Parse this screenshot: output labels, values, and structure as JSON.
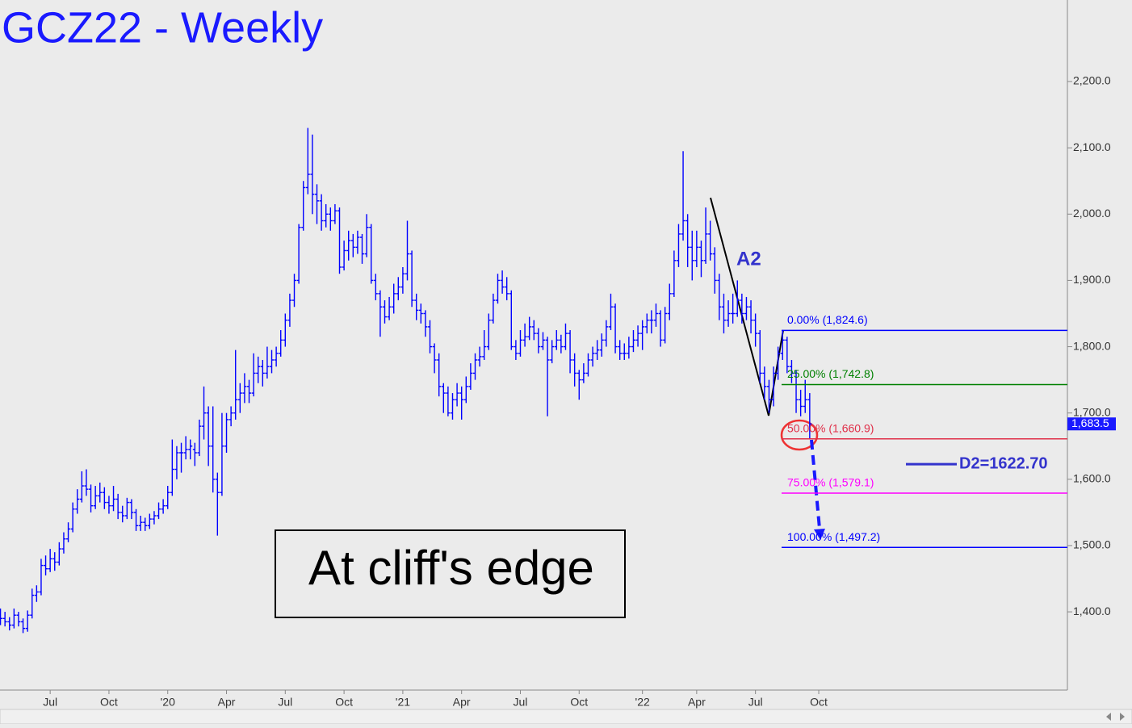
{
  "chart_data": {
    "type": "ohlc",
    "title": "GCZ22 - Weekly",
    "color": "#0000ff",
    "categories": [
      null,
      null,
      null,
      null,
      null,
      null,
      null,
      null,
      null,
      null,
      null,
      "Jul",
      null,
      null,
      null,
      null,
      null,
      null,
      null,
      null,
      null,
      null,
      null,
      null,
      "Oct",
      null,
      null,
      null,
      null,
      null,
      null,
      null,
      null,
      null,
      null,
      null,
      null,
      "'20",
      null,
      null,
      null,
      null,
      null,
      null,
      null,
      null,
      null,
      null,
      null,
      null,
      "Apr",
      null,
      null,
      null,
      null,
      null,
      null,
      null,
      null,
      null,
      null,
      null,
      null,
      "Jul",
      null,
      null,
      null,
      null,
      null,
      null,
      null,
      null,
      null,
      null,
      null,
      null,
      "Oct",
      null,
      null,
      null,
      null,
      null,
      null,
      null,
      null,
      null,
      null,
      null,
      null,
      "'21",
      null,
      null,
      null,
      null,
      null,
      null,
      null,
      null,
      null,
      null,
      null,
      null,
      "Apr",
      null,
      null,
      null,
      null,
      null,
      null,
      null,
      null,
      null,
      null,
      null,
      null,
      "Jul",
      null,
      null,
      null,
      null,
      null,
      null,
      null,
      null,
      null,
      null,
      null,
      null,
      "Oct",
      null,
      null,
      null,
      null,
      null,
      null,
      null,
      null,
      null,
      null,
      null,
      null,
      null,
      "'22",
      null,
      null,
      null,
      null,
      null,
      null,
      null,
      null,
      null,
      null,
      null,
      "Apr",
      null,
      null,
      null,
      null,
      null,
      null,
      null,
      null,
      null,
      null,
      null,
      null,
      "Jul",
      null,
      null,
      null,
      null,
      null,
      null,
      null,
      null,
      null,
      null,
      null,
      null,
      null,
      "Oct"
    ],
    "ohlc": [
      [
        1395,
        1405,
        1380,
        1390
      ],
      [
        1390,
        1400,
        1378,
        1385
      ],
      [
        1385,
        1392,
        1372,
        1380
      ],
      [
        1380,
        1405,
        1375,
        1395
      ],
      [
        1395,
        1400,
        1378,
        1385
      ],
      [
        1385,
        1390,
        1368,
        1375
      ],
      [
        1375,
        1402,
        1370,
        1395
      ],
      [
        1395,
        1435,
        1390,
        1425
      ],
      [
        1425,
        1440,
        1415,
        1430
      ],
      [
        1430,
        1480,
        1425,
        1470
      ],
      [
        1470,
        1485,
        1455,
        1465
      ],
      [
        1465,
        1495,
        1460,
        1480
      ],
      [
        1480,
        1490,
        1462,
        1475
      ],
      [
        1475,
        1505,
        1470,
        1495
      ],
      [
        1495,
        1520,
        1488,
        1510
      ],
      [
        1510,
        1535,
        1505,
        1525
      ],
      [
        1525,
        1565,
        1520,
        1555
      ],
      [
        1555,
        1585,
        1548,
        1570
      ],
      [
        1570,
        1612,
        1565,
        1590
      ],
      [
        1590,
        1615,
        1575,
        1585
      ],
      [
        1585,
        1592,
        1550,
        1560
      ],
      [
        1560,
        1590,
        1555,
        1575
      ],
      [
        1575,
        1595,
        1565,
        1580
      ],
      [
        1580,
        1588,
        1555,
        1565
      ],
      [
        1565,
        1575,
        1548,
        1560
      ],
      [
        1560,
        1590,
        1552,
        1570
      ],
      [
        1570,
        1578,
        1540,
        1550
      ],
      [
        1550,
        1560,
        1535,
        1545
      ],
      [
        1545,
        1572,
        1540,
        1565
      ],
      [
        1565,
        1570,
        1540,
        1550
      ],
      [
        1550,
        1555,
        1522,
        1530
      ],
      [
        1530,
        1545,
        1522,
        1535
      ],
      [
        1535,
        1542,
        1522,
        1530
      ],
      [
        1530,
        1548,
        1525,
        1540
      ],
      [
        1540,
        1552,
        1532,
        1545
      ],
      [
        1545,
        1565,
        1540,
        1555
      ],
      [
        1555,
        1570,
        1548,
        1560
      ],
      [
        1560,
        1590,
        1555,
        1580
      ],
      [
        1580,
        1660,
        1575,
        1615
      ],
      [
        1615,
        1650,
        1600,
        1640
      ],
      [
        1640,
        1655,
        1610,
        1640
      ],
      [
        1640,
        1665,
        1630,
        1645
      ],
      [
        1645,
        1660,
        1630,
        1650
      ],
      [
        1645,
        1655,
        1620,
        1640
      ],
      [
        1640,
        1690,
        1635,
        1680
      ],
      [
        1680,
        1740,
        1660,
        1700
      ],
      [
        1700,
        1710,
        1620,
        1650
      ],
      [
        1650,
        1710,
        1580,
        1600
      ],
      [
        1600,
        1610,
        1515,
        1580
      ],
      [
        1580,
        1700,
        1575,
        1650
      ],
      [
        1650,
        1700,
        1640,
        1690
      ],
      [
        1690,
        1710,
        1680,
        1700
      ],
      [
        1700,
        1795,
        1690,
        1720
      ],
      [
        1720,
        1745,
        1700,
        1730
      ],
      [
        1730,
        1760,
        1715,
        1740
      ],
      [
        1740,
        1750,
        1715,
        1730
      ],
      [
        1730,
        1790,
        1725,
        1760
      ],
      [
        1760,
        1785,
        1745,
        1770
      ],
      [
        1770,
        1780,
        1740,
        1760
      ],
      [
        1760,
        1800,
        1752,
        1770
      ],
      [
        1770,
        1795,
        1760,
        1780
      ],
      [
        1780,
        1800,
        1770,
        1790
      ],
      [
        1790,
        1825,
        1785,
        1810
      ],
      [
        1810,
        1850,
        1800,
        1840
      ],
      [
        1840,
        1880,
        1830,
        1870
      ],
      [
        1870,
        1910,
        1860,
        1900
      ],
      [
        1900,
        1985,
        1895,
        1980
      ],
      [
        1980,
        2050,
        1975,
        2040
      ],
      [
        2040,
        2130,
        2030,
        2060
      ],
      [
        2060,
        2120,
        2000,
        2030
      ],
      [
        2030,
        2045,
        1985,
        2020
      ],
      [
        2020,
        2030,
        1975,
        1990
      ],
      [
        1990,
        2015,
        1980,
        2000
      ],
      [
        2000,
        2010,
        1975,
        1990
      ],
      [
        1990,
        2015,
        1985,
        2005
      ],
      [
        2005,
        2010,
        1910,
        1920
      ],
      [
        1920,
        1960,
        1915,
        1945
      ],
      [
        1945,
        1975,
        1930,
        1960
      ],
      [
        1960,
        1970,
        1935,
        1950
      ],
      [
        1950,
        1975,
        1940,
        1965
      ],
      [
        1965,
        1970,
        1925,
        1940
      ],
      [
        1940,
        2000,
        1935,
        1980
      ],
      [
        1980,
        1985,
        1895,
        1900
      ],
      [
        1900,
        1910,
        1870,
        1880
      ],
      [
        1880,
        1885,
        1815,
        1860
      ],
      [
        1860,
        1870,
        1835,
        1845
      ],
      [
        1845,
        1875,
        1840,
        1860
      ],
      [
        1860,
        1895,
        1850,
        1880
      ],
      [
        1880,
        1905,
        1870,
        1890
      ],
      [
        1890,
        1920,
        1880,
        1910
      ],
      [
        1910,
        1990,
        1900,
        1940
      ],
      [
        1940,
        1945,
        1860,
        1870
      ],
      [
        1870,
        1880,
        1840,
        1855
      ],
      [
        1855,
        1865,
        1835,
        1850
      ],
      [
        1850,
        1855,
        1815,
        1830
      ],
      [
        1830,
        1840,
        1790,
        1800
      ],
      [
        1800,
        1805,
        1760,
        1780
      ],
      [
        1780,
        1790,
        1725,
        1740
      ],
      [
        1740,
        1745,
        1700,
        1730
      ],
      [
        1730,
        1740,
        1695,
        1700
      ],
      [
        1700,
        1730,
        1690,
        1720
      ],
      [
        1720,
        1745,
        1710,
        1730
      ],
      [
        1730,
        1740,
        1690,
        1720
      ],
      [
        1720,
        1755,
        1715,
        1740
      ],
      [
        1740,
        1775,
        1735,
        1760
      ],
      [
        1760,
        1790,
        1750,
        1780
      ],
      [
        1780,
        1800,
        1770,
        1785
      ],
      [
        1785,
        1825,
        1780,
        1800
      ],
      [
        1800,
        1850,
        1795,
        1840
      ],
      [
        1840,
        1880,
        1835,
        1870
      ],
      [
        1870,
        1910,
        1865,
        1900
      ],
      [
        1900,
        1915,
        1880,
        1890
      ],
      [
        1890,
        1905,
        1870,
        1880
      ],
      [
        1880,
        1885,
        1795,
        1800
      ],
      [
        1800,
        1810,
        1780,
        1790
      ],
      [
        1790,
        1825,
        1785,
        1810
      ],
      [
        1810,
        1835,
        1800,
        1815
      ],
      [
        1815,
        1845,
        1810,
        1830
      ],
      [
        1830,
        1840,
        1810,
        1820
      ],
      [
        1820,
        1828,
        1790,
        1800
      ],
      [
        1800,
        1822,
        1795,
        1810
      ],
      [
        1810,
        1815,
        1695,
        1780
      ],
      [
        1780,
        1810,
        1775,
        1800
      ],
      [
        1800,
        1825,
        1795,
        1810
      ],
      [
        1810,
        1818,
        1790,
        1800
      ],
      [
        1800,
        1835,
        1795,
        1820
      ],
      [
        1820,
        1825,
        1760,
        1780
      ],
      [
        1780,
        1790,
        1740,
        1760
      ],
      [
        1760,
        1765,
        1720,
        1750
      ],
      [
        1750,
        1775,
        1745,
        1760
      ],
      [
        1760,
        1790,
        1755,
        1780
      ],
      [
        1780,
        1800,
        1770,
        1790
      ],
      [
        1790,
        1810,
        1780,
        1795
      ],
      [
        1795,
        1820,
        1785,
        1810
      ],
      [
        1810,
        1840,
        1800,
        1830
      ],
      [
        1830,
        1880,
        1825,
        1860
      ],
      [
        1860,
        1865,
        1790,
        1800
      ],
      [
        1800,
        1810,
        1780,
        1790
      ],
      [
        1790,
        1805,
        1780,
        1790
      ],
      [
        1790,
        1815,
        1782,
        1800
      ],
      [
        1800,
        1825,
        1792,
        1810
      ],
      [
        1810,
        1832,
        1800,
        1820
      ],
      [
        1820,
        1840,
        1795,
        1830
      ],
      [
        1830,
        1850,
        1820,
        1840
      ],
      [
        1840,
        1855,
        1820,
        1840
      ],
      [
        1840,
        1865,
        1830,
        1850
      ],
      [
        1850,
        1855,
        1800,
        1810
      ],
      [
        1810,
        1860,
        1805,
        1850
      ],
      [
        1850,
        1895,
        1840,
        1880
      ],
      [
        1880,
        1945,
        1875,
        1930
      ],
      [
        1930,
        1985,
        1920,
        1970
      ],
      [
        1970,
        2095,
        1960,
        1990
      ],
      [
        1990,
        2000,
        1920,
        1950
      ],
      [
        1950,
        1975,
        1900,
        1930
      ],
      [
        1930,
        1975,
        1920,
        1950
      ],
      [
        1950,
        1960,
        1905,
        1930
      ],
      [
        1930,
        2010,
        1925,
        1970
      ],
      [
        1970,
        1990,
        1930,
        1940
      ],
      [
        1940,
        1950,
        1880,
        1900
      ],
      [
        1900,
        1910,
        1840,
        1860
      ],
      [
        1860,
        1880,
        1820,
        1840
      ],
      [
        1840,
        1870,
        1830,
        1850
      ],
      [
        1850,
        1880,
        1835,
        1850
      ],
      [
        1850,
        1900,
        1845,
        1870
      ],
      [
        1870,
        1880,
        1835,
        1850
      ],
      [
        1850,
        1875,
        1840,
        1860
      ],
      [
        1860,
        1870,
        1820,
        1840
      ],
      [
        1840,
        1850,
        1800,
        1820
      ],
      [
        1820,
        1825,
        1745,
        1760
      ],
      [
        1760,
        1770,
        1720,
        1740
      ],
      [
        1740,
        1750,
        1700,
        1720
      ],
      [
        1720,
        1770,
        1710,
        1760
      ],
      [
        1760,
        1800,
        1750,
        1790
      ],
      [
        1790,
        1825,
        1780,
        1810
      ],
      [
        1810,
        1815,
        1760,
        1770
      ],
      [
        1770,
        1780,
        1745,
        1760
      ],
      [
        1760,
        1765,
        1700,
        1720
      ],
      [
        1720,
        1735,
        1695,
        1710
      ],
      [
        1710,
        1750,
        1700,
        1720
      ],
      [
        1720,
        1730,
        1660,
        1683.5
      ],
      null,
      null
    ],
    "xlim": [
      -0.1,
      236
    ],
    "ylim": [
      1282,
      2323
    ],
    "yticks": [
      {
        "value": 1400,
        "label": "1,400.0"
      },
      {
        "value": 1500,
        "label": "1,500.0"
      },
      {
        "value": 1600,
        "label": "1,600.0"
      },
      {
        "value": 1700,
        "label": "1,700.0"
      },
      {
        "value": 1800,
        "label": "1,800.0"
      },
      {
        "value": 1900,
        "label": "1,900.0"
      },
      {
        "value": 2000,
        "label": "2,000.0"
      },
      {
        "value": 2100,
        "label": "2,100.0"
      },
      {
        "value": 2200,
        "label": "2,200.0"
      }
    ],
    "last_price": {
      "value": 1683.5,
      "label": "1,683.5"
    },
    "levels": [
      {
        "label": "0.00% (1,824.6)",
        "value": 1824.6,
        "color": "#0000ff"
      },
      {
        "label": "25.00% (1,742.8)",
        "value": 1742.8,
        "color": "#008000"
      },
      {
        "label": "50.00% (1,660.9)",
        "value": 1660.9,
        "color": "#e0304a"
      },
      {
        "label": "75.00% (1,579.1)",
        "value": 1579.1,
        "color": "#ff00ff"
      },
      {
        "label": "100.00% (1,497.2)",
        "value": 1497.2,
        "color": "#0000ff"
      }
    ],
    "target": {
      "label": "D2=1622.70",
      "value": 1622.7,
      "color": "#3333cc"
    },
    "pattern_label": "A2",
    "note": "At cliff's edge"
  }
}
